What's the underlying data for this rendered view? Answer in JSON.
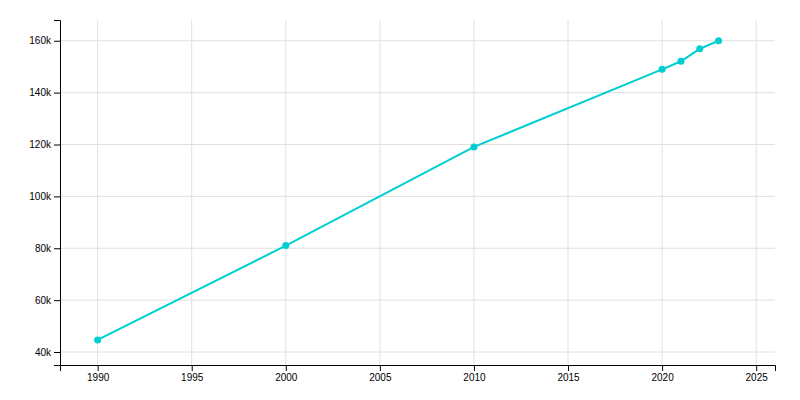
{
  "chart_data": {
    "type": "line",
    "x": [
      1990,
      2000,
      2010,
      2020,
      2021,
      2022,
      2023
    ],
    "values": [
      44685,
      81020,
      119060,
      148985,
      152100,
      156900,
      160000
    ],
    "color": "#00CED1",
    "marker": "circle",
    "xlim": [
      1988,
      2026
    ],
    "ylim": [
      35000,
      168000
    ],
    "xticks": [
      1990,
      1995,
      2000,
      2005,
      2010,
      2015,
      2020,
      2025
    ],
    "yticks": [
      {
        "value": 40000,
        "label": "40k"
      },
      {
        "value": 60000,
        "label": "60k"
      },
      {
        "value": 80000,
        "label": "80k"
      },
      {
        "value": 100000,
        "label": "100k"
      },
      {
        "value": 120000,
        "label": "120k"
      },
      {
        "value": 140000,
        "label": "140k"
      },
      {
        "value": 160000,
        "label": "160k"
      }
    ],
    "grid": true
  }
}
